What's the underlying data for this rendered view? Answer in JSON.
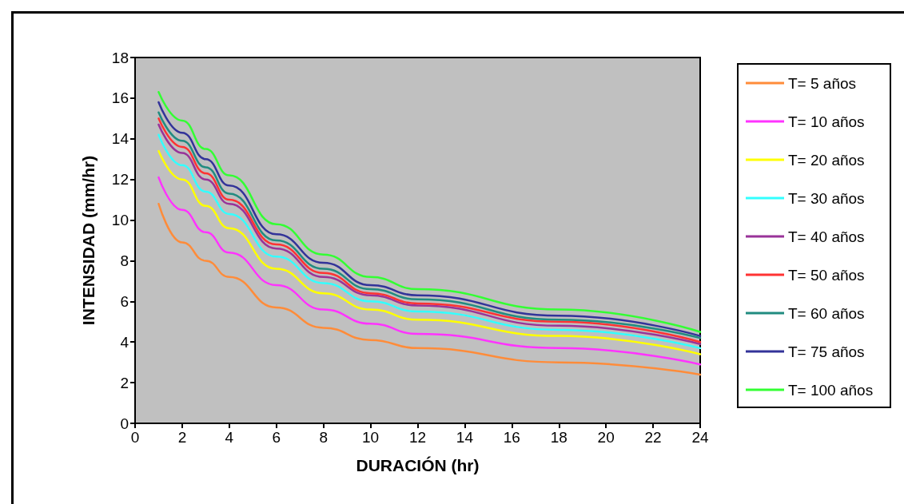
{
  "chart_data": {
    "type": "line",
    "xlabel": "DURACIÓN (hr)",
    "ylabel": "INTENSIDAD (mm/hr)",
    "x": [
      1,
      2,
      3,
      4,
      6,
      8,
      10,
      12,
      18,
      24
    ],
    "xlim": [
      0,
      24
    ],
    "xticks": [
      0,
      2,
      4,
      6,
      8,
      10,
      12,
      14,
      16,
      18,
      20,
      22,
      24
    ],
    "ylim": [
      0,
      18
    ],
    "yticks": [
      0,
      2,
      4,
      6,
      8,
      10,
      12,
      14,
      16,
      18
    ],
    "grid": false,
    "legend": "right",
    "marker": "none",
    "line_style": "solid",
    "series": [
      {
        "name": "T= 5 años",
        "color": "#ff8c3a",
        "values": [
          10.8,
          8.9,
          8.0,
          7.2,
          5.7,
          4.7,
          4.1,
          3.7,
          3.0,
          2.4
        ]
      },
      {
        "name": "T= 10 años",
        "color": "#ff33ff",
        "values": [
          12.1,
          10.5,
          9.4,
          8.4,
          6.8,
          5.6,
          4.9,
          4.4,
          3.7,
          2.9
        ]
      },
      {
        "name": "T= 20 años",
        "color": "#ffff00",
        "values": [
          13.4,
          12.0,
          10.7,
          9.6,
          7.6,
          6.4,
          5.6,
          5.1,
          4.3,
          3.4
        ]
      },
      {
        "name": "T= 30 años",
        "color": "#33ffff",
        "values": [
          14.2,
          12.7,
          11.4,
          10.3,
          8.2,
          6.9,
          6.0,
          5.5,
          4.6,
          3.7
        ]
      },
      {
        "name": "T= 40 años",
        "color": "#993399",
        "values": [
          14.7,
          13.3,
          12.0,
          10.8,
          8.6,
          7.2,
          6.3,
          5.8,
          4.8,
          3.9
        ]
      },
      {
        "name": "T= 50 años",
        "color": "#ff3333",
        "values": [
          15.0,
          13.6,
          12.3,
          11.0,
          8.8,
          7.4,
          6.4,
          5.9,
          5.0,
          4.0
        ]
      },
      {
        "name": "T= 60 años",
        "color": "#218c80",
        "values": [
          15.3,
          13.9,
          12.6,
          11.3,
          9.0,
          7.6,
          6.6,
          6.1,
          5.1,
          4.2
        ]
      },
      {
        "name": "T= 75 años",
        "color": "#333399",
        "values": [
          15.8,
          14.3,
          13.0,
          11.7,
          9.3,
          7.9,
          6.8,
          6.3,
          5.3,
          4.3
        ]
      },
      {
        "name": "T= 100 años",
        "color": "#33ff33",
        "values": [
          16.3,
          14.9,
          13.5,
          12.2,
          9.8,
          8.3,
          7.2,
          6.6,
          5.6,
          4.5
        ]
      }
    ]
  }
}
